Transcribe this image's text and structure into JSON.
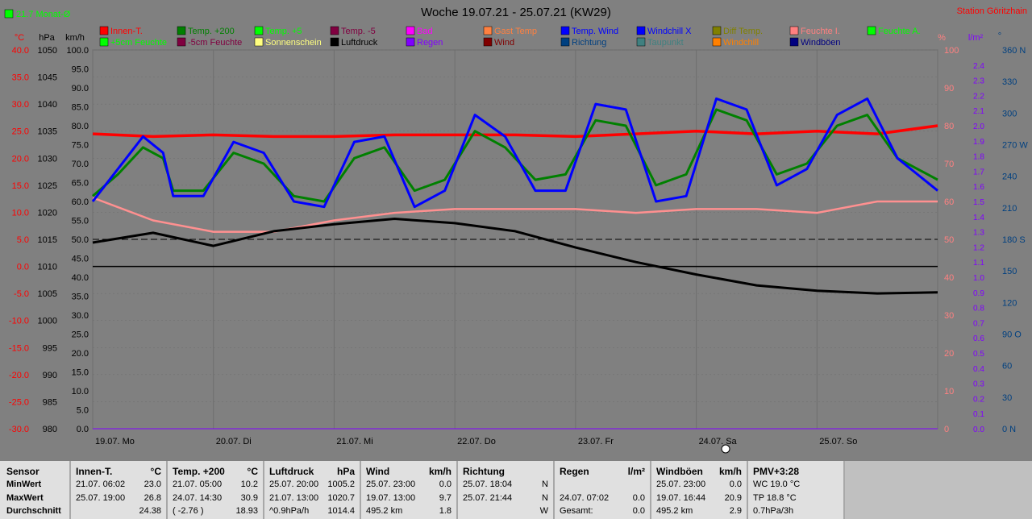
{
  "header": {
    "title": "Woche 19.07.21 - 25.07.21 (KW29)",
    "station": "Station Göritzhain",
    "badge": "21.7 Monat-Ø"
  },
  "axis_units": {
    "celsius": "°C",
    "hpa": "hPa",
    "kmh": "km/h",
    "percent": "%",
    "lm2": "l/m²",
    "deg": "°"
  },
  "legend": [
    {
      "label": "Innen-T.",
      "color": "#ff0000"
    },
    {
      "label": "Temp. +200",
      "color": "#008000"
    },
    {
      "label": "Temp. +5",
      "color": "#00ff00"
    },
    {
      "label": "Temp. -5",
      "color": "#800040"
    },
    {
      "label": "Bad",
      "color": "#ff00ff"
    },
    {
      "label": "Gast Temp",
      "color": "#ff8040"
    },
    {
      "label": "Temp. Wind",
      "color": "#0000ff"
    },
    {
      "label": "Windchill X",
      "color": "#0000ff"
    },
    {
      "label": "Diff Temp.",
      "color": "#808000"
    },
    {
      "label": "Feuchte I.",
      "color": "#ff8080"
    },
    {
      "label": "Feuchte A.",
      "color": "#00ff00"
    },
    {
      "label": "+5cm Feuchte",
      "color": "#00ff00"
    },
    {
      "label": "-5cm Feuchte",
      "color": "#800040"
    },
    {
      "label": "Sonnenschein",
      "color": "#ffff80"
    },
    {
      "label": "Luftdruck",
      "color": "#000000"
    },
    {
      "label": "Regen",
      "color": "#8000ff"
    },
    {
      "label": "Wind",
      "color": "#800000"
    },
    {
      "label": "Richtung",
      "color": "#004080"
    },
    {
      "label": "Taupunkt",
      "color": "#408080"
    },
    {
      "label": "Windchill",
      "color": "#ff8000"
    },
    {
      "label": "Windböen",
      "color": "#000080"
    }
  ],
  "chart_data": {
    "type": "line",
    "title": "Woche 19.07.21 - 25.07.21 (KW29)",
    "x_labels": [
      "19.07. Mo",
      "20.07. Di",
      "21.07. Mi",
      "22.07. Do",
      "23.07. Fr",
      "24.07. Sa",
      "25.07. So"
    ],
    "x_range_hours": [
      0,
      168
    ],
    "axes": {
      "temperature": {
        "unit": "°C",
        "min": -30,
        "max": 40,
        "ticks": [
          "40.0",
          "35.0",
          "30.0",
          "25.0",
          "20.0",
          "15.0",
          "10.0",
          "5.0",
          "0.0",
          "-5.0",
          "-10.0",
          "-15.0",
          "-20.0",
          "-25.0",
          "-30.0"
        ]
      },
      "pressure": {
        "unit": "hPa",
        "min": 980,
        "max": 1050,
        "ticks": [
          "1050",
          "1045",
          "1040",
          "1035",
          "1030",
          "1025",
          "1020",
          "1015",
          "1010",
          "1005",
          "1000",
          "995",
          "990",
          "985",
          "980"
        ]
      },
      "wind": {
        "unit": "km/h",
        "min": 0,
        "max": 100,
        "ticks": [
          "100.0",
          "95.0",
          "90.0",
          "85.0",
          "80.0",
          "75.0",
          "70.0",
          "65.0",
          "60.0",
          "55.0",
          "50.0",
          "45.0",
          "40.0",
          "35.0",
          "30.0",
          "25.0",
          "20.0",
          "15.0",
          "10.0",
          "5.0",
          "0.0"
        ]
      },
      "humidity": {
        "unit": "%",
        "min": 0,
        "max": 100,
        "ticks": [
          "100",
          "90",
          "80",
          "70",
          "60",
          "50",
          "40",
          "30",
          "20",
          "10",
          "0"
        ]
      },
      "rain": {
        "unit": "l/m²",
        "min": 0,
        "max": 2.5,
        "ticks": [
          "2.4",
          "2.3",
          "2.2",
          "2.1",
          "2.0",
          "1.9",
          "1.8",
          "1.7",
          "1.6",
          "1.5",
          "1.4",
          "1.3",
          "1.2",
          "1.1",
          "1.0",
          "0.9",
          "0.8",
          "0.7",
          "0.6",
          "0.5",
          "0.4",
          "0.3",
          "0.2",
          "0.1",
          "0.0"
        ]
      },
      "direction": {
        "unit": "°",
        "min": 0,
        "max": 360,
        "ticks": [
          "360 N",
          "330",
          "300",
          "270 W",
          "240",
          "210",
          "180 S",
          "150",
          "120",
          "90 O",
          "60",
          "30",
          "0 N"
        ]
      }
    },
    "series": [
      {
        "name": "Innen-T.",
        "axis": "temperature",
        "color": "#ff0000",
        "width": 3.5,
        "x": [
          0,
          12,
          24,
          36,
          48,
          60,
          72,
          84,
          96,
          108,
          120,
          132,
          144,
          156,
          168
        ],
        "y": [
          24.5,
          24.0,
          24.3,
          24.0,
          24.0,
          24.3,
          24.3,
          24.3,
          24.0,
          24.5,
          25.0,
          24.5,
          25.0,
          24.5,
          26.0
        ]
      },
      {
        "name": "Feuchte I.",
        "axis": "humidity",
        "color": "#ff9090",
        "width": 2.5,
        "x": [
          0,
          12,
          24,
          36,
          48,
          60,
          72,
          84,
          96,
          108,
          120,
          132,
          144,
          156,
          168
        ],
        "y": [
          61,
          55,
          52,
          52,
          55,
          57,
          58,
          58,
          58,
          57,
          58,
          58,
          57,
          60,
          60
        ]
      },
      {
        "name": "Luftdruck",
        "axis": "pressure",
        "color": "#000000",
        "width": 3,
        "x": [
          0,
          12,
          24,
          36,
          48,
          60,
          72,
          84,
          96,
          108,
          120,
          132,
          144,
          156,
          168
        ],
        "y": [
          1014.4,
          1016.2,
          1013.8,
          1016.5,
          1017.8,
          1018.8,
          1018.0,
          1016.5,
          1013.5,
          1010.8,
          1008.5,
          1006.5,
          1005.5,
          1005.0,
          1005.2
        ]
      },
      {
        "name": "Temp. +200",
        "axis": "temperature",
        "color": "#008000",
        "width": 3,
        "x": [
          0,
          5,
          10,
          14,
          16,
          22,
          28,
          34,
          40,
          46,
          52,
          58,
          64,
          70,
          76,
          82,
          88,
          94,
          100,
          106,
          112,
          118,
          124,
          130,
          136,
          142,
          148,
          154,
          160,
          168
        ],
        "y": [
          13,
          17,
          22,
          20,
          14,
          14,
          21,
          19,
          13,
          12,
          20,
          22,
          14,
          16,
          25,
          22,
          16,
          17,
          27,
          26,
          15,
          17,
          29,
          27,
          17,
          19,
          26,
          28,
          20,
          16
        ]
      },
      {
        "name": "Windchill X",
        "axis": "temperature",
        "color": "#0000ff",
        "width": 3,
        "x": [
          0,
          5,
          10,
          14,
          16,
          22,
          28,
          34,
          40,
          46,
          52,
          58,
          64,
          70,
          76,
          82,
          88,
          94,
          100,
          106,
          112,
          118,
          124,
          130,
          136,
          142,
          148,
          154,
          160,
          168
        ],
        "y": [
          12,
          18,
          24,
          21,
          13,
          13,
          23,
          21,
          12,
          11,
          23,
          24,
          11,
          14,
          28,
          24,
          14,
          14,
          30,
          29,
          12,
          13,
          31,
          29,
          15,
          18,
          28,
          31,
          20,
          14
        ]
      },
      {
        "name": "Regen",
        "axis": "rain",
        "color": "#8000ff",
        "width": 1,
        "x": [
          0,
          168
        ],
        "y": [
          0,
          0
        ]
      }
    ]
  },
  "table": {
    "row_labels": [
      "Sensor",
      "MinWert",
      "MaxWert",
      "Durchschnitt"
    ],
    "columns": [
      {
        "title": "Innen-T.",
        "unit": "°C",
        "rows": [
          [
            "21.07.  06:02",
            "23.0"
          ],
          [
            "25.07.  19:00",
            "26.8"
          ],
          [
            "",
            "24.38"
          ]
        ]
      },
      {
        "title": "Temp. +200",
        "unit": "°C",
        "rows": [
          [
            "21.07.  05:00",
            "10.2"
          ],
          [
            "24.07.  14:30",
            "30.9"
          ],
          [
            "( -2.76 )",
            "18.93"
          ]
        ]
      },
      {
        "title": "Luftdruck",
        "unit": "hPa",
        "rows": [
          [
            "25.07.  20:00",
            "1005.2"
          ],
          [
            "21.07.  13:00",
            "1020.7"
          ],
          [
            "^0.9hPa/h",
            "1014.4"
          ]
        ]
      },
      {
        "title": "Wind",
        "unit": "km/h",
        "rows": [
          [
            "25.07.  23:00",
            "0.0"
          ],
          [
            "19.07.  13:00",
            "9.7"
          ],
          [
            "495.2 km",
            "1.8"
          ]
        ]
      },
      {
        "title": "Richtung",
        "unit": "",
        "rows": [
          [
            "25.07.  18:04",
            "N"
          ],
          [
            "25.07.  21:44",
            "N"
          ],
          [
            "",
            "W"
          ]
        ]
      },
      {
        "title": "Regen",
        "unit": "l/m²",
        "rows": [
          [
            "",
            ""
          ],
          [
            "24.07.  07:02",
            "0.0"
          ],
          [
            "Gesamt:",
            "0.0"
          ]
        ]
      },
      {
        "title": "Windböen",
        "unit": "km/h",
        "rows": [
          [
            "25.07.  23:00",
            "0.0"
          ],
          [
            "19.07.  16:44",
            "20.9"
          ],
          [
            "495.2 km",
            "2.9"
          ]
        ]
      },
      {
        "title": "PMV+3:28",
        "unit": "",
        "rows": [
          [
            "WC 19.0 °C",
            ""
          ],
          [
            "TP 18.8 °C",
            ""
          ],
          [
            "0.7hPa/3h",
            ""
          ]
        ]
      }
    ]
  }
}
